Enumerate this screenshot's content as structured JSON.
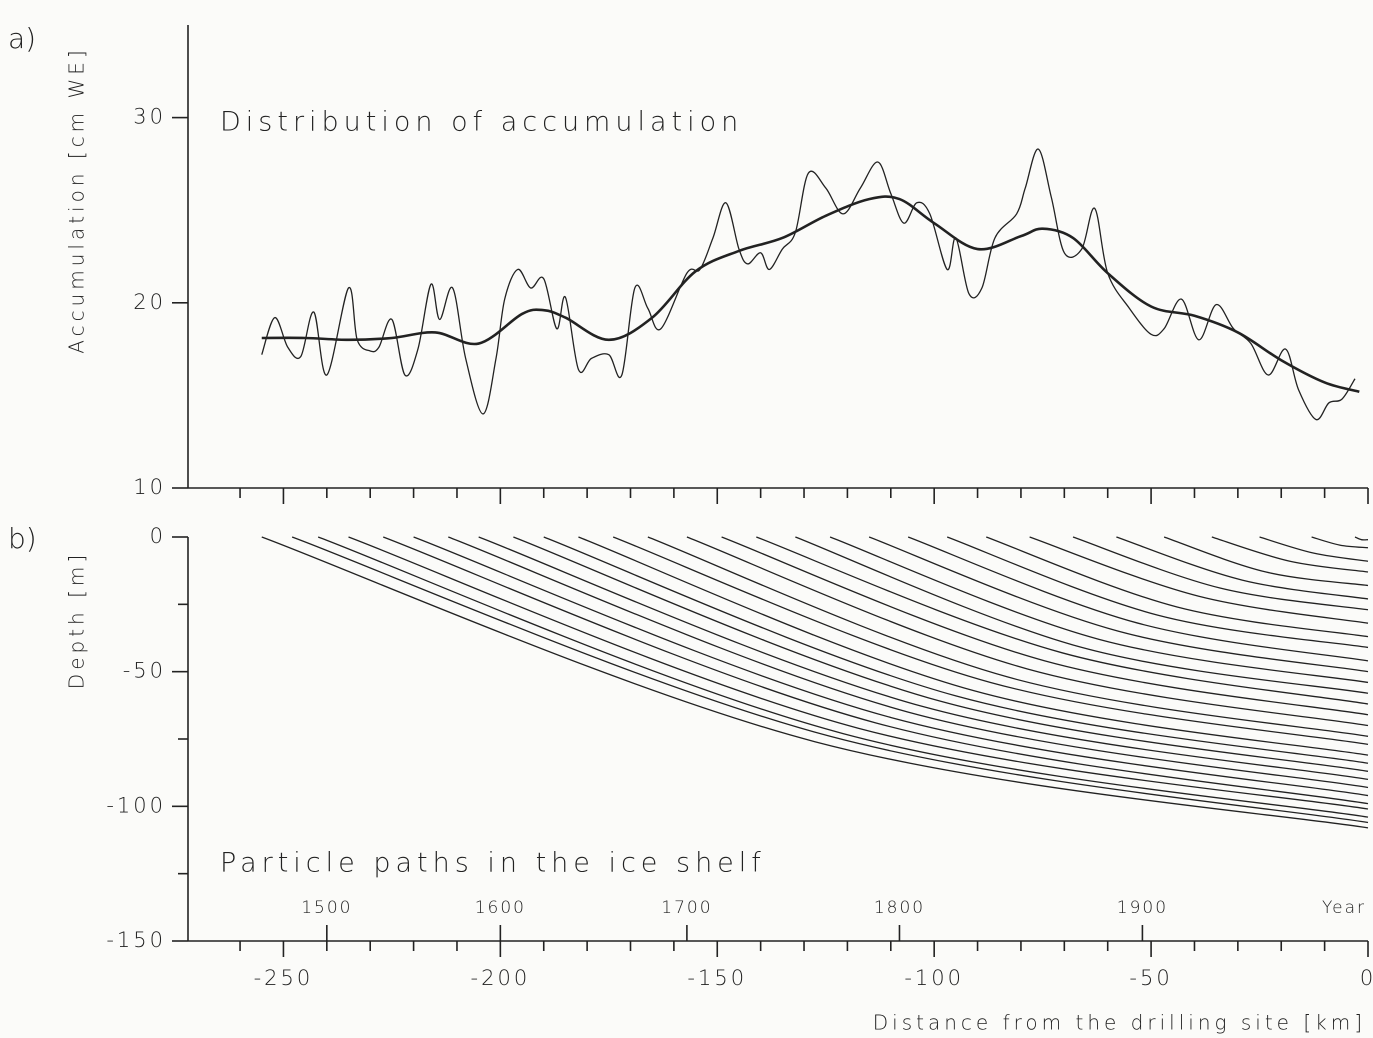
{
  "chart_data": [
    {
      "type": "line",
      "panel_label": "a)",
      "title": "Distribution of accumulation",
      "ylabel": "Accumulation [cm WE]",
      "xlim": [
        -272,
        0
      ],
      "ylim": [
        10,
        35
      ],
      "yticks": [
        10,
        20,
        30
      ],
      "xticks": [
        -250,
        -200,
        -150,
        -100,
        -50,
        0
      ],
      "xtick_labels": false,
      "xminor": [
        -260,
        -240,
        -230,
        -220,
        -210,
        -190,
        -180,
        -170,
        -160,
        -140,
        -130,
        -120,
        -110,
        -90,
        -80,
        -70,
        -60,
        -40,
        -30,
        -20,
        -10
      ],
      "series": [
        {
          "color": "#222222",
          "linewidth": 1.3,
          "x": [
            -255,
            -252,
            -249,
            -246,
            -243,
            -240,
            -235,
            -233,
            -230,
            -228,
            -225,
            -222,
            -219,
            -216,
            -214,
            -211,
            -208,
            -204,
            -201,
            -199,
            -196,
            -193,
            -190,
            -187,
            -185,
            -182,
            -179,
            -175,
            -172,
            -169,
            -166,
            -163,
            -157,
            -154,
            -151,
            -148,
            -145,
            -143,
            -140,
            -138,
            -135,
            -132,
            -129,
            -125,
            -121,
            -117,
            -113,
            -110,
            -107,
            -104,
            -101,
            -97,
            -95,
            -92,
            -89,
            -86,
            -81,
            -79,
            -76,
            -73,
            -70,
            -66,
            -63,
            -60,
            -55,
            -50,
            -47,
            -43,
            -39,
            -35,
            -31,
            -27,
            -23,
            -19,
            -16,
            -12,
            -9,
            -6,
            -3
          ],
          "values": [
            17.2,
            19.2,
            17.6,
            17.1,
            19.5,
            16.1,
            20.8,
            18.0,
            17.4,
            17.6,
            19.1,
            16.1,
            17.5,
            21.0,
            19.1,
            20.8,
            17.0,
            14.0,
            17.0,
            20.2,
            21.8,
            20.8,
            21.3,
            18.6,
            20.3,
            16.4,
            17.0,
            17.2,
            16.1,
            20.8,
            19.7,
            18.6,
            21.6,
            21.8,
            23.5,
            25.4,
            22.9,
            22.1,
            22.7,
            21.8,
            22.9,
            23.8,
            27.0,
            26.2,
            24.8,
            26.2,
            27.6,
            25.9,
            24.3,
            25.4,
            24.8,
            21.8,
            23.5,
            20.5,
            20.8,
            23.5,
            24.8,
            26.2,
            28.3,
            25.7,
            22.7,
            22.9,
            25.1,
            21.6,
            19.7,
            18.3,
            18.6,
            20.2,
            18.0,
            19.9,
            18.6,
            17.8,
            16.1,
            17.5,
            15.3,
            13.7,
            14.6,
            14.8,
            15.9
          ]
        },
        {
          "color": "#222222",
          "linewidth": 2.6,
          "x": [
            -255,
            -245,
            -235,
            -225,
            -215,
            -205,
            -195,
            -190,
            -185,
            -175,
            -165,
            -155,
            -145,
            -135,
            -125,
            -115,
            -108,
            -100,
            -90,
            -80,
            -75,
            -68,
            -60,
            -50,
            -40,
            -30,
            -20,
            -10,
            -2
          ],
          "values": [
            18.1,
            18.1,
            18.0,
            18.1,
            18.4,
            17.8,
            19.4,
            19.6,
            19.2,
            18.0,
            19.2,
            21.7,
            22.8,
            23.5,
            24.7,
            25.6,
            25.6,
            24.3,
            22.9,
            23.6,
            24.0,
            23.5,
            21.6,
            19.8,
            19.3,
            18.4,
            16.9,
            15.7,
            15.2
          ]
        }
      ]
    },
    {
      "type": "line",
      "panel_label": "b)",
      "title": "Particle paths in the ice shelf",
      "ylabel": "Depth [m]",
      "xlabel": "Distance from the drilling site [km]",
      "xlim": [
        -272,
        0
      ],
      "ylim": [
        -150,
        0
      ],
      "yticks": [
        -150,
        -100,
        -50,
        0
      ],
      "yminor": [
        -125,
        -75,
        -25
      ],
      "xticks": [
        -250,
        -200,
        -150,
        -100,
        -50,
        0
      ],
      "xtick_labels": true,
      "xminor": [
        -260,
        -240,
        -230,
        -220,
        -210,
        -190,
        -180,
        -170,
        -160,
        -140,
        -130,
        -120,
        -110,
        -90,
        -80,
        -70,
        -60,
        -40,
        -30,
        -20,
        -10
      ],
      "x2ticks": [
        {
          "value": -240,
          "label": "1500"
        },
        {
          "value": -200,
          "label": "1600"
        },
        {
          "value": -157,
          "label": "1700"
        },
        {
          "value": -108,
          "label": "1800"
        },
        {
          "value": -52,
          "label": "1900"
        }
      ],
      "x2label": "Year",
      "series": [
        {
          "color": "#222222",
          "linewidth": 1.3,
          "x": [
            -255,
            -127.5,
            0
          ],
          "values": [
            0,
            -76,
            -108
          ]
        },
        {
          "color": "#222222",
          "linewidth": 1.3,
          "x": [
            -248,
            -124,
            0
          ],
          "values": [
            0,
            -74,
            -106
          ]
        },
        {
          "color": "#222222",
          "linewidth": 1.3,
          "x": [
            -242,
            -121,
            0
          ],
          "values": [
            0,
            -73,
            -104
          ]
        },
        {
          "color": "#222222",
          "linewidth": 1.3,
          "x": [
            -235,
            -117.5,
            0
          ],
          "values": [
            0,
            -71,
            -101
          ]
        },
        {
          "color": "#222222",
          "linewidth": 1.3,
          "x": [
            -227,
            -113.5,
            0
          ],
          "values": [
            0,
            -69,
            -99
          ]
        },
        {
          "color": "#222222",
          "linewidth": 1.3,
          "x": [
            -220,
            -110,
            0
          ],
          "values": [
            0,
            -67,
            -96
          ]
        },
        {
          "color": "#222222",
          "linewidth": 1.3,
          "x": [
            -212,
            -106,
            0
          ],
          "values": [
            0,
            -65,
            -93
          ]
        },
        {
          "color": "#222222",
          "linewidth": 1.3,
          "x": [
            -205,
            -102.5,
            0
          ],
          "values": [
            0,
            -63,
            -90
          ]
        },
        {
          "color": "#222222",
          "linewidth": 1.3,
          "x": [
            -197,
            -98.5,
            0
          ],
          "values": [
            0,
            -61,
            -87
          ]
        },
        {
          "color": "#222222",
          "linewidth": 1.3,
          "x": [
            -190,
            -95,
            0
          ],
          "values": [
            0,
            -59,
            -84
          ]
        },
        {
          "color": "#222222",
          "linewidth": 1.3,
          "x": [
            -182,
            -91,
            0
          ],
          "values": [
            0,
            -57,
            -81
          ]
        },
        {
          "color": "#222222",
          "linewidth": 1.3,
          "x": [
            -174,
            -87,
            0
          ],
          "values": [
            0,
            -54,
            -77
          ]
        },
        {
          "color": "#222222",
          "linewidth": 1.3,
          "x": [
            -166,
            -83,
            0
          ],
          "values": [
            0,
            -52,
            -74
          ]
        },
        {
          "color": "#222222",
          "linewidth": 1.3,
          "x": [
            -157,
            -78.5,
            0
          ],
          "values": [
            0,
            -49,
            -70
          ]
        },
        {
          "color": "#222222",
          "linewidth": 1.3,
          "x": [
            -149,
            -74.5,
            0
          ],
          "values": [
            0,
            -46,
            -66
          ]
        },
        {
          "color": "#222222",
          "linewidth": 1.3,
          "x": [
            -141,
            -70.5,
            0
          ],
          "values": [
            0,
            -43,
            -62
          ]
        },
        {
          "color": "#222222",
          "linewidth": 1.3,
          "x": [
            -132,
            -66,
            0
          ],
          "values": [
            0,
            -41,
            -58
          ]
        },
        {
          "color": "#222222",
          "linewidth": 1.3,
          "x": [
            -124,
            -62,
            0
          ],
          "values": [
            0,
            -38,
            -54
          ]
        },
        {
          "color": "#222222",
          "linewidth": 1.3,
          "x": [
            -115,
            -57.5,
            0
          ],
          "values": [
            0,
            -35,
            -50
          ]
        },
        {
          "color": "#222222",
          "linewidth": 1.3,
          "x": [
            -106,
            -53,
            0
          ],
          "values": [
            0,
            -32,
            -46
          ]
        },
        {
          "color": "#222222",
          "linewidth": 1.3,
          "x": [
            -97,
            -48.5,
            0
          ],
          "values": [
            0,
            -29,
            -41
          ]
        },
        {
          "color": "#222222",
          "linewidth": 1.3,
          "x": [
            -88,
            -44,
            0
          ],
          "values": [
            0,
            -26,
            -37
          ]
        },
        {
          "color": "#222222",
          "linewidth": 1.3,
          "x": [
            -78,
            -39,
            0
          ],
          "values": [
            0,
            -22,
            -32
          ]
        },
        {
          "color": "#222222",
          "linewidth": 1.3,
          "x": [
            -68,
            -34,
            0
          ],
          "values": [
            0,
            -19,
            -27
          ]
        },
        {
          "color": "#222222",
          "linewidth": 1.3,
          "x": [
            -58,
            -29,
            0
          ],
          "values": [
            0,
            -16,
            -23
          ]
        },
        {
          "color": "#222222",
          "linewidth": 1.3,
          "x": [
            -47,
            -23.5,
            0
          ],
          "values": [
            0,
            -13,
            -18
          ]
        },
        {
          "color": "#222222",
          "linewidth": 1.3,
          "x": [
            -36,
            -18,
            0
          ],
          "values": [
            0,
            -9,
            -13
          ]
        },
        {
          "color": "#222222",
          "linewidth": 1.3,
          "x": [
            -25,
            -12.5,
            0
          ],
          "values": [
            0,
            -6,
            -9
          ]
        },
        {
          "color": "#222222",
          "linewidth": 1.3,
          "x": [
            -13,
            -6.5,
            0
          ],
          "values": [
            0,
            -3,
            -4
          ]
        },
        {
          "color": "#222222",
          "linewidth": 1.3,
          "x": [
            -3,
            -1.5,
            0
          ],
          "values": [
            0,
            -1,
            -1
          ]
        }
      ]
    }
  ]
}
